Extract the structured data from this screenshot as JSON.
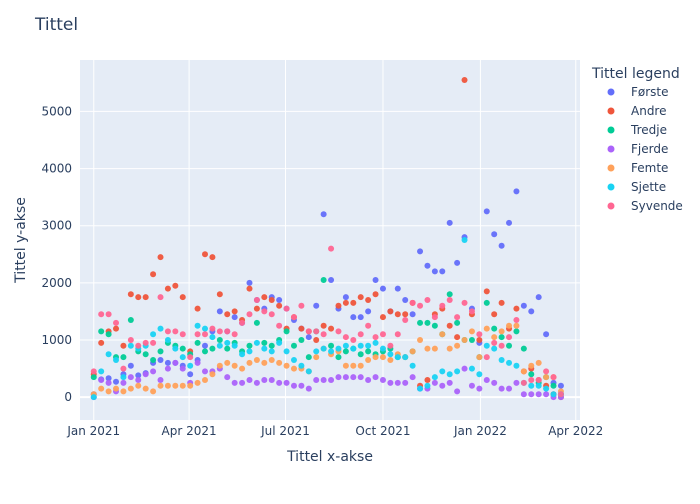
{
  "chart_data": {
    "type": "scatter",
    "title": "Tittel",
    "xlabel": "Tittel x-akse",
    "ylabel": "Tittel y-akse",
    "legend_title": "Tittel legend",
    "legend_position": "right",
    "grid": true,
    "background_color": "#e5ecf6",
    "xlim": [
      "2020-12-19",
      "2022-04-05"
    ],
    "ylim": [
      -400,
      5900
    ],
    "x_ticks": [
      {
        "date": "2021-01-01",
        "label": "Jan 2021"
      },
      {
        "date": "2021-04-01",
        "label": "Apr 2021"
      },
      {
        "date": "2021-07-01",
        "label": "Jul 2021"
      },
      {
        "date": "2021-10-01",
        "label": "Oct 2021"
      },
      {
        "date": "2022-01-01",
        "label": "Jan 2022"
      },
      {
        "date": "2022-04-01",
        "label": "Apr 2022"
      }
    ],
    "y_ticks": [
      0,
      1000,
      2000,
      3000,
      4000,
      5000
    ],
    "dates": [
      "2021-01-01",
      "2021-01-08",
      "2021-01-15",
      "2021-01-22",
      "2021-01-29",
      "2021-02-05",
      "2021-02-12",
      "2021-02-19",
      "2021-02-26",
      "2021-03-05",
      "2021-03-12",
      "2021-03-19",
      "2021-03-26",
      "2021-04-02",
      "2021-04-09",
      "2021-04-16",
      "2021-04-23",
      "2021-04-30",
      "2021-05-07",
      "2021-05-14",
      "2021-05-21",
      "2021-05-28",
      "2021-06-04",
      "2021-06-11",
      "2021-06-18",
      "2021-06-25",
      "2021-07-02",
      "2021-07-09",
      "2021-07-16",
      "2021-07-23",
      "2021-07-30",
      "2021-08-06",
      "2021-08-13",
      "2021-08-20",
      "2021-08-27",
      "2021-09-03",
      "2021-09-10",
      "2021-09-17",
      "2021-09-24",
      "2021-10-01",
      "2021-10-08",
      "2021-10-15",
      "2021-10-22",
      "2021-10-29",
      "2021-11-05",
      "2021-11-12",
      "2021-11-19",
      "2021-11-26",
      "2021-12-03",
      "2021-12-10",
      "2021-12-17",
      "2021-12-24",
      "2021-12-31",
      "2022-01-07",
      "2022-01-14",
      "2022-01-21",
      "2022-01-28",
      "2022-02-04",
      "2022-02-11",
      "2022-02-18",
      "2022-02-25",
      "2022-03-04",
      "2022-03-11",
      "2022-03-18"
    ],
    "series": [
      {
        "name": "Første",
        "color": "#636efa",
        "values": [
          50,
          310,
          330,
          270,
          400,
          550,
          380,
          420,
          600,
          650,
          600,
          600,
          550,
          400,
          650,
          900,
          1150,
          1500,
          1150,
          1400,
          1300,
          2000,
          1700,
          1550,
          1750,
          1700,
          1550,
          1350,
          1200,
          1050,
          1600,
          3200,
          2050,
          1550,
          1750,
          1400,
          1400,
          1500,
          2050,
          1900,
          1500,
          1900,
          1700,
          1450,
          2550,
          2300,
          2200,
          2200,
          3050,
          2350,
          2800,
          1550,
          950,
          3250,
          2850,
          2650,
          3050,
          3600,
          1600,
          1500,
          1750,
          1100,
          250,
          200
        ]
      },
      {
        "name": "Andre",
        "color": "#ef553b",
        "values": [
          400,
          950,
          1150,
          1200,
          900,
          1800,
          1750,
          1750,
          2150,
          2450,
          1900,
          1950,
          1750,
          800,
          1550,
          2500,
          2450,
          1800,
          1450,
          1500,
          1350,
          1900,
          1550,
          1750,
          1700,
          1600,
          1200,
          1400,
          1200,
          1150,
          1000,
          1250,
          1200,
          1600,
          1650,
          1650,
          1750,
          1700,
          1800,
          1400,
          1500,
          1450,
          1450,
          1650,
          200,
          300,
          1450,
          1550,
          1250,
          1050,
          5550,
          1450,
          1000,
          1850,
          1450,
          1650,
          1200,
          1550,
          450,
          500,
          300,
          200,
          50,
          0
        ]
      },
      {
        "name": "Tredje",
        "color": "#00cc96",
        "values": [
          350,
          1150,
          1100,
          700,
          700,
          1350,
          800,
          750,
          650,
          800,
          950,
          900,
          850,
          750,
          950,
          800,
          850,
          1000,
          850,
          950,
          800,
          900,
          1300,
          950,
          900,
          1000,
          1150,
          900,
          1000,
          700,
          1150,
          2050,
          900,
          700,
          800,
          850,
          750,
          800,
          750,
          800,
          850,
          700,
          700,
          800,
          1300,
          1300,
          1250,
          1100,
          1800,
          1300,
          1000,
          1000,
          700,
          1650,
          1200,
          1050,
          900,
          1150,
          850,
          400,
          250,
          350,
          200,
          50
        ]
      },
      {
        "name": "Fjerde",
        "color": "#ab63fa",
        "values": [
          0,
          300,
          250,
          100,
          250,
          350,
          300,
          400,
          450,
          300,
          500,
          600,
          500,
          250,
          600,
          450,
          450,
          500,
          350,
          250,
          250,
          300,
          250,
          300,
          300,
          250,
          250,
          200,
          200,
          150,
          300,
          300,
          300,
          350,
          350,
          350,
          350,
          300,
          350,
          300,
          250,
          250,
          250,
          350,
          150,
          150,
          250,
          200,
          250,
          100,
          500,
          200,
          150,
          300,
          250,
          150,
          150,
          250,
          50,
          50,
          50,
          50,
          0,
          0
        ]
      },
      {
        "name": "Femte",
        "color": "#ffa15a",
        "values": [
          50,
          150,
          100,
          150,
          100,
          150,
          200,
          150,
          100,
          200,
          200,
          200,
          200,
          200,
          250,
          300,
          400,
          550,
          600,
          550,
          500,
          600,
          650,
          600,
          650,
          600,
          550,
          500,
          500,
          450,
          700,
          850,
          750,
          800,
          550,
          550,
          550,
          650,
          700,
          700,
          650,
          750,
          700,
          800,
          1000,
          850,
          850,
          1100,
          850,
          900,
          1000,
          1150,
          700,
          1200,
          1050,
          1150,
          1250,
          1250,
          450,
          550,
          600,
          350,
          350,
          100
        ]
      },
      {
        "name": "Sjette",
        "color": "#19d3f3",
        "values": [
          0,
          450,
          750,
          650,
          350,
          900,
          850,
          900,
          1100,
          1200,
          1000,
          850,
          700,
          550,
          1250,
          1200,
          1050,
          900,
          950,
          900,
          750,
          800,
          950,
          850,
          800,
          950,
          800,
          650,
          550,
          450,
          800,
          850,
          800,
          850,
          900,
          850,
          900,
          900,
          950,
          850,
          750,
          700,
          700,
          550,
          150,
          200,
          350,
          450,
          400,
          450,
          2750,
          500,
          400,
          900,
          850,
          650,
          600,
          550,
          250,
          200,
          200,
          150,
          50,
          50
        ]
      },
      {
        "name": "Syvende",
        "color": "#ff6692",
        "values": [
          450,
          1450,
          1450,
          1300,
          500,
          1000,
          900,
          950,
          950,
          1750,
          1150,
          1150,
          1100,
          700,
          1100,
          1100,
          1200,
          1150,
          1150,
          1100,
          1300,
          1450,
          1700,
          1500,
          1450,
          1250,
          1550,
          1400,
          1600,
          1150,
          1150,
          1100,
          2600,
          1150,
          1050,
          1000,
          1100,
          1250,
          1050,
          1100,
          900,
          1100,
          1350,
          1650,
          1600,
          1700,
          1400,
          1600,
          1700,
          1400,
          1650,
          1500,
          1100,
          700,
          950,
          900,
          1050,
          1350,
          250,
          300,
          300,
          450,
          350,
          50
        ]
      }
    ]
  }
}
